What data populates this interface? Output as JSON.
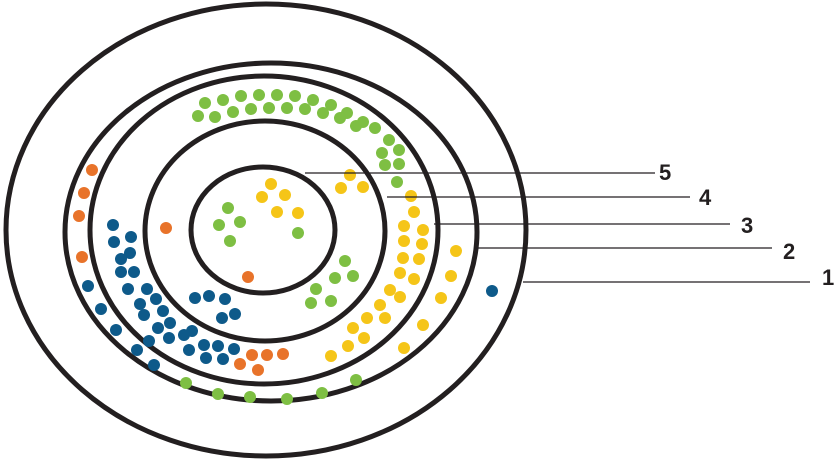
{
  "colors": {
    "ring_stroke": "#231f20",
    "green": "#7ebf43",
    "yellow": "#f5c518",
    "blue": "#0e5a8a",
    "orange": "#e8732a"
  },
  "rings": [
    {
      "label": "1"
    },
    {
      "label": "2"
    },
    {
      "label": "3"
    },
    {
      "label": "4"
    },
    {
      "label": "5"
    }
  ]
}
